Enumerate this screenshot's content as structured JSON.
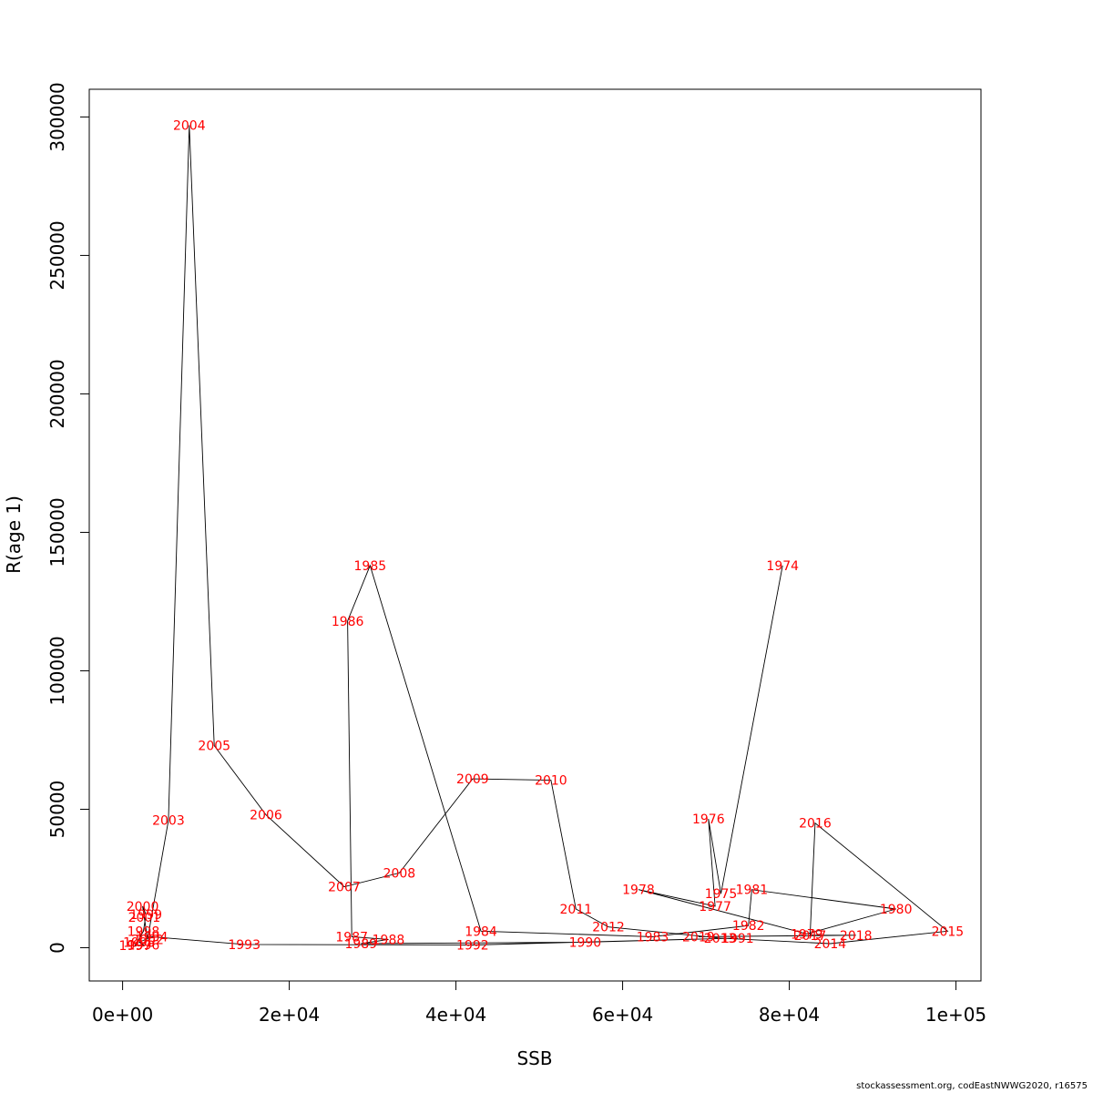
{
  "chart_data": {
    "type": "scatter",
    "title": "",
    "xlabel": "SSB",
    "ylabel": "R(age 1)",
    "xlim": [
      -4000,
      103000
    ],
    "ylim": [
      -12000,
      310000
    ],
    "xticks": [
      0,
      20000,
      40000,
      60000,
      80000,
      100000
    ],
    "xtick_labels": [
      "0e+00",
      "2e+04",
      "4e+04",
      "6e+04",
      "8e+04",
      "1e+05"
    ],
    "yticks": [
      0,
      50000,
      100000,
      150000,
      200000,
      250000,
      300000
    ],
    "ytick_labels": [
      "0",
      "50000",
      "100000",
      "150000",
      "200000",
      "250000",
      "300000"
    ],
    "grid": false,
    "connect_points": true,
    "line_color": "#000000",
    "label_color": "#ff0000",
    "points": [
      {
        "year": "1974",
        "x": 79200,
        "y": 138000
      },
      {
        "year": "1975",
        "x": 71800,
        "y": 19500
      },
      {
        "year": "1976",
        "x": 70300,
        "y": 46500
      },
      {
        "year": "1977",
        "x": 71100,
        "y": 15000
      },
      {
        "year": "1978",
        "x": 61900,
        "y": 21000
      },
      {
        "year": "1979",
        "x": 82100,
        "y": 5000
      },
      {
        "year": "1980",
        "x": 92800,
        "y": 14000
      },
      {
        "year": "1981",
        "x": 75500,
        "y": 21000
      },
      {
        "year": "1982",
        "x": 75100,
        "y": 8000
      },
      {
        "year": "1983",
        "x": 63600,
        "y": 4000
      },
      {
        "year": "1984",
        "x": 43000,
        "y": 6000
      },
      {
        "year": "1985",
        "x": 29700,
        "y": 138000
      },
      {
        "year": "1986",
        "x": 27000,
        "y": 118000
      },
      {
        "year": "1987",
        "x": 27500,
        "y": 4000
      },
      {
        "year": "1988",
        "x": 31900,
        "y": 3000
      },
      {
        "year": "1989",
        "x": 28600,
        "y": 1500
      },
      {
        "year": "1990",
        "x": 55500,
        "y": 2000
      },
      {
        "year": "1991",
        "x": 73800,
        "y": 3500
      },
      {
        "year": "1992",
        "x": 42000,
        "y": 1000
      },
      {
        "year": "1993",
        "x": 14600,
        "y": 1200
      },
      {
        "year": "1994",
        "x": 3500,
        "y": 4000
      },
      {
        "year": "1995",
        "x": 2000,
        "y": 2000
      },
      {
        "year": "1996",
        "x": 2500,
        "y": 1000
      },
      {
        "year": "1997",
        "x": 1500,
        "y": 800
      },
      {
        "year": "1998",
        "x": 2500,
        "y": 6000
      },
      {
        "year": "1999",
        "x": 2800,
        "y": 12000
      },
      {
        "year": "2000",
        "x": 2400,
        "y": 15000
      },
      {
        "year": "2001",
        "x": 2600,
        "y": 11000
      },
      {
        "year": "2002",
        "x": 3000,
        "y": 3000
      },
      {
        "year": "2003",
        "x": 5500,
        "y": 46000
      },
      {
        "year": "2004",
        "x": 8000,
        "y": 297000
      },
      {
        "year": "2005",
        "x": 11000,
        "y": 73000
      },
      {
        "year": "2006",
        "x": 17200,
        "y": 48000
      },
      {
        "year": "2007",
        "x": 26600,
        "y": 22000
      },
      {
        "year": "2008",
        "x": 33200,
        "y": 27000
      },
      {
        "year": "2009",
        "x": 42000,
        "y": 61000
      },
      {
        "year": "2010",
        "x": 51400,
        "y": 60500
      },
      {
        "year": "2011",
        "x": 54400,
        "y": 14000
      },
      {
        "year": "2012",
        "x": 58300,
        "y": 7500
      },
      {
        "year": "2013",
        "x": 71700,
        "y": 3500
      },
      {
        "year": "2014",
        "x": 84900,
        "y": 1500
      },
      {
        "year": "2015",
        "x": 99000,
        "y": 6000
      },
      {
        "year": "2016",
        "x": 83100,
        "y": 45000
      },
      {
        "year": "2017",
        "x": 82500,
        "y": 4500
      },
      {
        "year": "2018",
        "x": 88000,
        "y": 4500
      },
      {
        "year": "2019",
        "x": 69100,
        "y": 4000
      }
    ]
  },
  "footer": "stockassessment.org, codEastNWWG2020, r16575"
}
